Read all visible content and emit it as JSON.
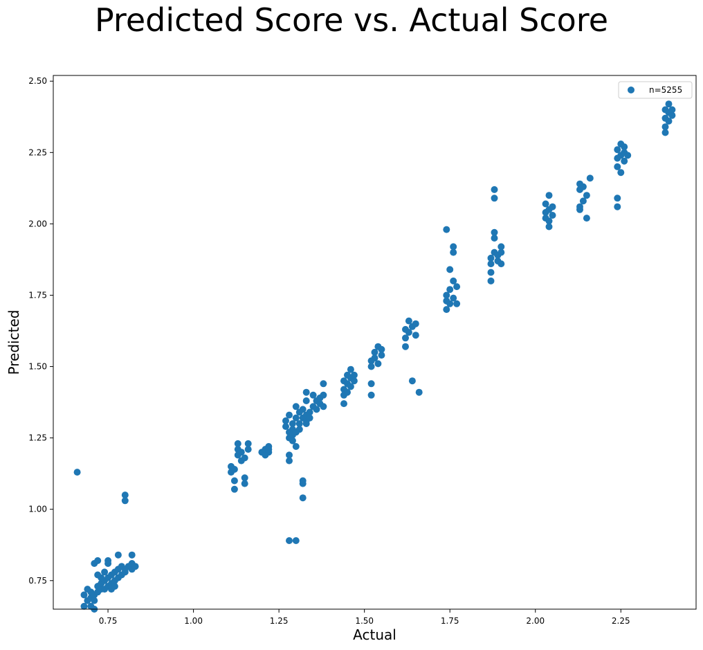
{
  "chart_data": {
    "type": "scatter",
    "title": "Predicted Score vs. Actual Score",
    "xlabel": "Actual",
    "ylabel": "Predicted",
    "xlim": [
      0.59,
      2.47
    ],
    "ylim": [
      0.65,
      2.52
    ],
    "xticks": [
      {
        "value": 0.75,
        "label": "0.75"
      },
      {
        "value": 1.0,
        "label": "1.00"
      },
      {
        "value": 1.25,
        "label": "1.25"
      },
      {
        "value": 1.5,
        "label": "1.50"
      },
      {
        "value": 1.75,
        "label": "1.75"
      },
      {
        "value": 2.0,
        "label": "2.00"
      },
      {
        "value": 2.25,
        "label": "2.25"
      }
    ],
    "yticks": [
      {
        "value": 0.75,
        "label": "0.75"
      },
      {
        "value": 1.0,
        "label": "1.00"
      },
      {
        "value": 1.25,
        "label": "1.25"
      },
      {
        "value": 1.5,
        "label": "1.50"
      },
      {
        "value": 1.75,
        "label": "1.75"
      },
      {
        "value": 2.0,
        "label": "2.00"
      },
      {
        "value": 2.25,
        "label": "2.25"
      },
      {
        "value": 2.5,
        "label": "2.50"
      }
    ],
    "grid": false,
    "legend": {
      "position": "top-right"
    },
    "series": [
      {
        "name": "n=5255",
        "color": "#1f77b4",
        "points": [
          [
            0.66,
            1.13
          ],
          [
            0.68,
            0.66
          ],
          [
            0.68,
            0.7
          ],
          [
            0.69,
            0.68
          ],
          [
            0.69,
            0.72
          ],
          [
            0.7,
            0.66
          ],
          [
            0.7,
            0.69
          ],
          [
            0.7,
            0.71
          ],
          [
            0.71,
            0.65
          ],
          [
            0.71,
            0.68
          ],
          [
            0.71,
            0.7
          ],
          [
            0.71,
            0.81
          ],
          [
            0.72,
            0.73
          ],
          [
            0.72,
            0.71
          ],
          [
            0.72,
            0.82
          ],
          [
            0.73,
            0.72
          ],
          [
            0.73,
            0.74
          ],
          [
            0.74,
            0.72
          ],
          [
            0.74,
            0.75
          ],
          [
            0.75,
            0.73
          ],
          [
            0.75,
            0.76
          ],
          [
            0.75,
            0.82
          ],
          [
            0.75,
            0.81
          ],
          [
            0.76,
            0.74
          ],
          [
            0.76,
            0.77
          ],
          [
            0.77,
            0.75
          ],
          [
            0.77,
            0.73
          ],
          [
            0.77,
            0.78
          ],
          [
            0.78,
            0.76
          ],
          [
            0.78,
            0.79
          ],
          [
            0.78,
            0.84
          ],
          [
            0.79,
            0.77
          ],
          [
            0.79,
            0.8
          ],
          [
            0.8,
            0.78
          ],
          [
            0.8,
            0.79
          ],
          [
            0.8,
            1.05
          ],
          [
            0.8,
            1.03
          ],
          [
            0.81,
            0.8
          ],
          [
            0.82,
            0.79
          ],
          [
            0.82,
            0.81
          ],
          [
            0.82,
            0.84
          ],
          [
            0.83,
            0.8
          ],
          [
            0.74,
            0.78
          ],
          [
            0.73,
            0.76
          ],
          [
            0.76,
            0.72
          ],
          [
            0.72,
            0.77
          ],
          [
            1.11,
            1.15
          ],
          [
            1.11,
            1.13
          ],
          [
            1.12,
            1.14
          ],
          [
            1.12,
            1.1
          ],
          [
            1.12,
            1.07
          ],
          [
            1.13,
            1.23
          ],
          [
            1.13,
            1.21
          ],
          [
            1.13,
            1.19
          ],
          [
            1.14,
            1.17
          ],
          [
            1.14,
            1.2
          ],
          [
            1.15,
            1.11
          ],
          [
            1.15,
            1.09
          ],
          [
            1.16,
            1.23
          ],
          [
            1.16,
            1.21
          ],
          [
            1.15,
            1.18
          ],
          [
            1.2,
            1.2
          ],
          [
            1.21,
            1.21
          ],
          [
            1.21,
            1.19
          ],
          [
            1.22,
            1.22
          ],
          [
            1.22,
            1.2
          ],
          [
            1.22,
            1.21
          ],
          [
            1.27,
            1.29
          ],
          [
            1.27,
            1.31
          ],
          [
            1.28,
            1.27
          ],
          [
            1.28,
            1.25
          ],
          [
            1.28,
            1.33
          ],
          [
            1.28,
            1.19
          ],
          [
            1.28,
            1.17
          ],
          [
            1.28,
            0.89
          ],
          [
            1.29,
            1.26
          ],
          [
            1.29,
            1.3
          ],
          [
            1.29,
            1.24
          ],
          [
            1.29,
            1.28
          ],
          [
            1.3,
            1.22
          ],
          [
            1.3,
            1.32
          ],
          [
            1.3,
            1.27
          ],
          [
            1.3,
            0.89
          ],
          [
            1.3,
            1.36
          ],
          [
            1.31,
            1.34
          ],
          [
            1.31,
            1.3
          ],
          [
            1.31,
            1.28
          ],
          [
            1.32,
            1.32
          ],
          [
            1.32,
            1.35
          ],
          [
            1.32,
            1.1
          ],
          [
            1.32,
            1.09
          ],
          [
            1.32,
            1.04
          ],
          [
            1.33,
            1.31
          ],
          [
            1.33,
            1.33
          ],
          [
            1.33,
            1.3
          ],
          [
            1.33,
            1.38
          ],
          [
            1.33,
            1.41
          ],
          [
            1.34,
            1.34
          ],
          [
            1.34,
            1.32
          ],
          [
            1.35,
            1.36
          ],
          [
            1.35,
            1.4
          ],
          [
            1.36,
            1.35
          ],
          [
            1.36,
            1.38
          ],
          [
            1.37,
            1.37
          ],
          [
            1.37,
            1.39
          ],
          [
            1.38,
            1.36
          ],
          [
            1.38,
            1.4
          ],
          [
            1.38,
            1.44
          ],
          [
            1.44,
            1.45
          ],
          [
            1.44,
            1.42
          ],
          [
            1.44,
            1.4
          ],
          [
            1.44,
            1.37
          ],
          [
            1.45,
            1.47
          ],
          [
            1.45,
            1.44
          ],
          [
            1.45,
            1.41
          ],
          [
            1.46,
            1.46
          ],
          [
            1.46,
            1.43
          ],
          [
            1.46,
            1.49
          ],
          [
            1.47,
            1.45
          ],
          [
            1.47,
            1.47
          ],
          [
            1.52,
            1.52
          ],
          [
            1.52,
            1.5
          ],
          [
            1.52,
            1.44
          ],
          [
            1.52,
            1.4
          ],
          [
            1.53,
            1.55
          ],
          [
            1.53,
            1.53
          ],
          [
            1.54,
            1.57
          ],
          [
            1.54,
            1.51
          ],
          [
            1.55,
            1.56
          ],
          [
            1.55,
            1.54
          ],
          [
            1.62,
            1.63
          ],
          [
            1.62,
            1.6
          ],
          [
            1.62,
            1.57
          ],
          [
            1.63,
            1.66
          ],
          [
            1.63,
            1.62
          ],
          [
            1.64,
            1.64
          ],
          [
            1.64,
            1.45
          ],
          [
            1.65,
            1.65
          ],
          [
            1.65,
            1.61
          ],
          [
            1.66,
            1.41
          ],
          [
            1.74,
            1.73
          ],
          [
            1.74,
            1.75
          ],
          [
            1.74,
            1.7
          ],
          [
            1.74,
            1.98
          ],
          [
            1.75,
            1.77
          ],
          [
            1.75,
            1.72
          ],
          [
            1.75,
            1.84
          ],
          [
            1.76,
            1.92
          ],
          [
            1.76,
            1.9
          ],
          [
            1.76,
            1.8
          ],
          [
            1.76,
            1.74
          ],
          [
            1.77,
            1.72
          ],
          [
            1.77,
            1.78
          ],
          [
            1.87,
            1.88
          ],
          [
            1.87,
            1.86
          ],
          [
            1.87,
            1.83
          ],
          [
            1.87,
            1.8
          ],
          [
            1.88,
            2.12
          ],
          [
            1.88,
            2.09
          ],
          [
            1.88,
            1.95
          ],
          [
            1.88,
            1.9
          ],
          [
            1.88,
            1.97
          ],
          [
            1.89,
            1.87
          ],
          [
            1.89,
            1.89
          ],
          [
            1.9,
            1.92
          ],
          [
            1.9,
            1.86
          ],
          [
            1.9,
            1.9
          ],
          [
            2.03,
            2.04
          ],
          [
            2.03,
            2.02
          ],
          [
            2.03,
            2.07
          ],
          [
            2.04,
            2.1
          ],
          [
            2.04,
            2.05
          ],
          [
            2.04,
            2.01
          ],
          [
            2.04,
            1.99
          ],
          [
            2.05,
            2.03
          ],
          [
            2.05,
            2.06
          ],
          [
            2.13,
            2.14
          ],
          [
            2.13,
            2.12
          ],
          [
            2.13,
            2.06
          ],
          [
            2.13,
            2.05
          ],
          [
            2.14,
            2.13
          ],
          [
            2.14,
            2.08
          ],
          [
            2.15,
            2.1
          ],
          [
            2.15,
            2.02
          ],
          [
            2.16,
            2.16
          ],
          [
            2.24,
            2.26
          ],
          [
            2.24,
            2.23
          ],
          [
            2.24,
            2.2
          ],
          [
            2.24,
            2.09
          ],
          [
            2.24,
            2.06
          ],
          [
            2.25,
            2.28
          ],
          [
            2.25,
            2.24
          ],
          [
            2.25,
            2.18
          ],
          [
            2.26,
            2.25
          ],
          [
            2.26,
            2.27
          ],
          [
            2.26,
            2.22
          ],
          [
            2.27,
            2.24
          ],
          [
            2.38,
            2.32
          ],
          [
            2.38,
            2.34
          ],
          [
            2.38,
            2.37
          ],
          [
            2.38,
            2.4
          ],
          [
            2.39,
            2.36
          ],
          [
            2.39,
            2.39
          ],
          [
            2.39,
            2.42
          ],
          [
            2.4,
            2.38
          ],
          [
            2.4,
            2.4
          ]
        ]
      }
    ]
  }
}
